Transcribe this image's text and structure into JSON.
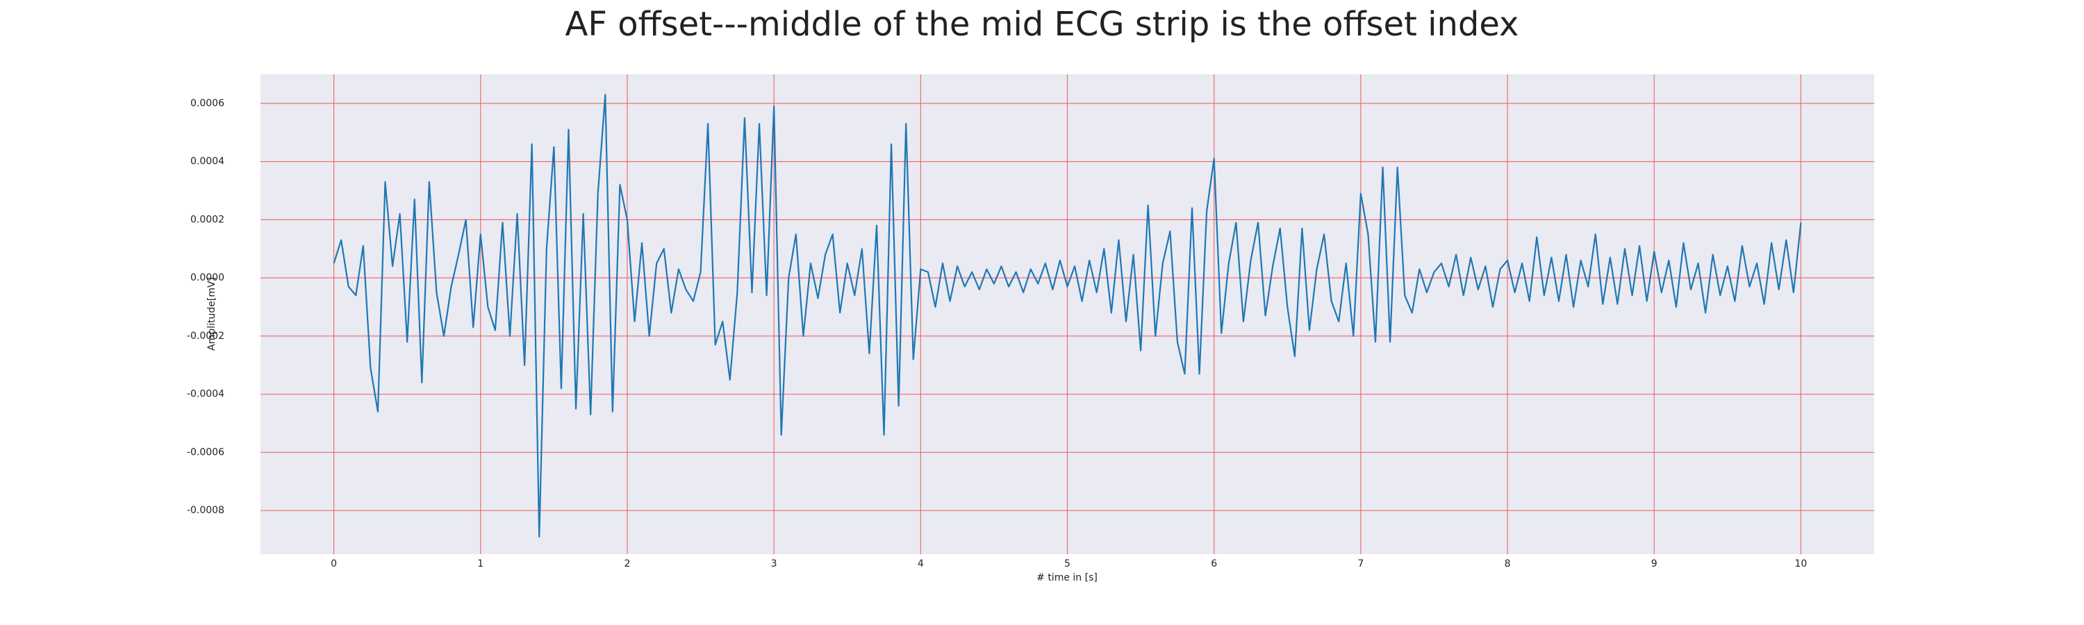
{
  "chart_data": {
    "type": "line",
    "title": "AF offset---middle of the mid ECG strip is the offset index",
    "xlabel": "# time in [s]",
    "ylabel": "Amplitude[mV]",
    "color": "#1f77b4",
    "grid": true,
    "xlim": [
      -0.5,
      10.5
    ],
    "xticks": [
      0,
      1,
      2,
      3,
      4,
      5,
      6,
      7,
      8,
      9,
      10
    ],
    "ylim": [
      -0.00095,
      0.0007
    ],
    "yticks": [
      -0.0008,
      -0.0006,
      -0.0004,
      -0.0002,
      {
        "value": 0,
        "label": "0.0000"
      },
      0.0002,
      0.0004,
      0.0006
    ],
    "x": [
      0,
      0.05,
      0.1,
      0.15,
      0.2,
      0.25,
      0.3,
      0.35,
      0.4,
      0.45,
      0.5,
      0.55,
      0.6,
      0.65,
      0.7,
      0.75,
      0.8,
      0.85,
      0.9,
      0.95,
      1,
      1.05,
      1.1,
      1.15,
      1.2,
      1.25,
      1.3,
      1.35,
      1.4,
      1.45,
      1.5,
      1.55,
      1.6,
      1.65,
      1.7,
      1.75,
      1.8,
      1.85,
      1.9,
      1.95,
      2,
      2.05,
      2.1,
      2.15,
      2.2,
      2.25,
      2.3,
      2.35,
      2.4,
      2.45,
      2.5,
      2.55,
      2.6,
      2.65,
      2.7,
      2.75,
      2.8,
      2.85,
      2.9,
      2.95,
      3,
      3.05,
      3.1,
      3.15,
      3.2,
      3.25,
      3.3,
      3.35,
      3.4,
      3.45,
      3.5,
      3.55,
      3.6,
      3.65,
      3.7,
      3.75,
      3.8,
      3.85,
      3.9,
      3.95,
      4,
      4.05,
      4.1,
      4.15,
      4.2,
      4.25,
      4.3,
      4.35,
      4.4,
      4.45,
      4.5,
      4.55,
      4.6,
      4.65,
      4.7,
      4.75,
      4.8,
      4.85,
      4.9,
      4.95,
      5,
      5.05,
      5.1,
      5.15,
      5.2,
      5.25,
      5.3,
      5.35,
      5.4,
      5.45,
      5.5,
      5.55,
      5.6,
      5.65,
      5.7,
      5.75,
      5.8,
      5.85,
      5.9,
      5.95,
      6,
      6.05,
      6.1,
      6.15,
      6.2,
      6.25,
      6.3,
      6.35,
      6.4,
      6.45,
      6.5,
      6.55,
      6.6,
      6.65,
      6.7,
      6.75,
      6.8,
      6.85,
      6.9,
      6.95,
      7,
      7.05,
      7.1,
      7.15,
      7.2,
      7.25,
      7.3,
      7.35,
      7.4,
      7.45,
      7.5,
      7.55,
      7.6,
      7.65,
      7.7,
      7.75,
      7.8,
      7.85,
      7.9,
      7.95,
      8,
      8.05,
      8.1,
      8.15,
      8.2,
      8.25,
      8.3,
      8.35,
      8.4,
      8.45,
      8.5,
      8.55,
      8.6,
      8.65,
      8.7,
      8.75,
      8.8,
      8.85,
      8.9,
      8.95,
      9,
      9.05,
      9.1,
      9.15,
      9.2,
      9.25,
      9.3,
      9.35,
      9.4,
      9.45,
      9.5,
      9.55,
      9.6,
      9.65,
      9.7,
      9.75,
      9.8,
      9.85,
      9.9,
      9.95,
      10
    ],
    "values": [
      5e-05,
      0.00013,
      -3e-05,
      -6e-05,
      0.00011,
      -0.00031,
      -0.00046,
      0.00033,
      4e-05,
      0.00022,
      -0.00022,
      0.00027,
      -0.00036,
      0.00033,
      -5e-05,
      -0.0002,
      -3e-05,
      8e-05,
      0.0002,
      -0.00017,
      0.00015,
      -0.0001,
      -0.00018,
      0.00019,
      -0.0002,
      0.00022,
      -0.0003,
      0.00046,
      -0.00089,
      0.0001,
      0.00045,
      -0.00038,
      0.00051,
      -0.00045,
      0.00022,
      -0.00047,
      0.00029,
      0.00063,
      -0.00046,
      0.00032,
      0.0002,
      -0.00015,
      0.00012,
      -0.0002,
      5e-05,
      0.0001,
      -0.00012,
      3e-05,
      -4e-05,
      -8e-05,
      2e-05,
      0.00053,
      -0.00023,
      -0.00015,
      -0.00035,
      -5e-05,
      0.00055,
      -5e-05,
      0.00053,
      -6e-05,
      0.00059,
      -0.00054,
      0,
      0.00015,
      -0.0002,
      5e-05,
      -7e-05,
      8e-05,
      0.00015,
      -0.00012,
      5e-05,
      -6e-05,
      0.0001,
      -0.00026,
      0.00018,
      -0.00054,
      0.00046,
      -0.00044,
      0.00053,
      -0.00028,
      3e-05,
      2e-05,
      -0.0001,
      5e-05,
      -8e-05,
      4e-05,
      -3e-05,
      2e-05,
      -4e-05,
      3e-05,
      -2e-05,
      4e-05,
      -3e-05,
      2e-05,
      -5e-05,
      3e-05,
      -2e-05,
      5e-05,
      -4e-05,
      6e-05,
      -3e-05,
      4e-05,
      -8e-05,
      6e-05,
      -5e-05,
      0.0001,
      -0.00012,
      0.00013,
      -0.00015,
      8e-05,
      -0.00025,
      0.00025,
      -0.0002,
      5e-05,
      0.00016,
      -0.00022,
      -0.00033,
      0.00024,
      -0.00033,
      0.00023,
      0.00041,
      -0.00019,
      5e-05,
      0.00019,
      -0.00015,
      6e-05,
      0.00019,
      -0.00013,
      4e-05,
      0.00017,
      -0.0001,
      -0.00027,
      0.00017,
      -0.00018,
      3e-05,
      0.00015,
      -8e-05,
      -0.00015,
      5e-05,
      -0.0002,
      0.00029,
      0.00015,
      -0.00022,
      0.00038,
      -0.00022,
      0.00038,
      -6e-05,
      -0.00012,
      3e-05,
      -5e-05,
      2e-05,
      5e-05,
      -3e-05,
      8e-05,
      -6e-05,
      7e-05,
      -4e-05,
      4e-05,
      -0.0001,
      3e-05,
      6e-05,
      -5e-05,
      5e-05,
      -8e-05,
      0.00014,
      -6e-05,
      7e-05,
      -8e-05,
      8e-05,
      -0.0001,
      6e-05,
      -3e-05,
      0.00015,
      -9e-05,
      7e-05,
      -9e-05,
      0.0001,
      -6e-05,
      0.00011,
      -8e-05,
      9e-05,
      -5e-05,
      6e-05,
      -0.0001,
      0.00012,
      -4e-05,
      5e-05,
      -0.00012,
      8e-05,
      -6e-05,
      4e-05,
      -8e-05,
      0.00011,
      -3e-05,
      5e-05,
      -9e-05,
      0.00012,
      -4e-05,
      0.00013,
      -5e-05,
      0.00019
    ]
  }
}
